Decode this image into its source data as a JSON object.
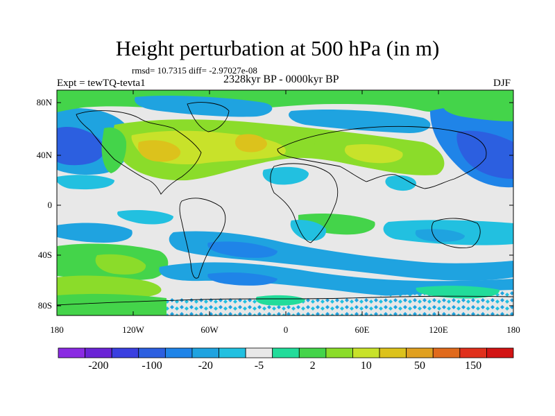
{
  "title": "Height perturbation at 500 hPa (in m)",
  "stats": "rmsd= 10.7315 diff= -2.97027e-08",
  "period": "2328kyr BP - 0000kyr BP",
  "experiment": "Expt = tewTQ-tevta1",
  "season": "DJF",
  "lat_labels": [
    "80N",
    "40N",
    "0",
    "40S",
    "80S"
  ],
  "lon_labels": [
    "180",
    "120W",
    "60W",
    "0",
    "60E",
    "120E",
    "180"
  ],
  "colorbar": {
    "colors": [
      "#8a2be2",
      "#6a24d6",
      "#3a3fe0",
      "#2c5fe0",
      "#1f84e8",
      "#1fa3e0",
      "#22c0e0",
      "#e8e8e8",
      "#22dc9a",
      "#44d44a",
      "#8bdc2a",
      "#c8e22a",
      "#dcc21c",
      "#e0a020",
      "#e06a1c",
      "#e0301c",
      "#d21414"
    ],
    "labels": [
      "-200",
      "-100",
      "-20",
      "-5",
      "2",
      "10",
      "50",
      "150"
    ]
  }
}
